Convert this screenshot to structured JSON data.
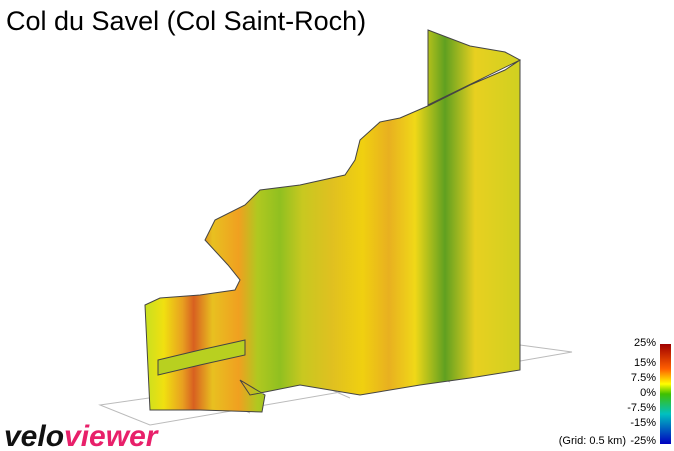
{
  "header": {
    "title": "Col du Savel (Col Saint-Roch)"
  },
  "legend": {
    "labels": [
      "25%",
      "15%",
      "7.5%",
      "0%",
      "-7.5%",
      "-15%",
      "-25%"
    ],
    "note": "(Grid: 0.5 km)"
  },
  "logo": {
    "first": "velo",
    "second": "viewer"
  }
}
